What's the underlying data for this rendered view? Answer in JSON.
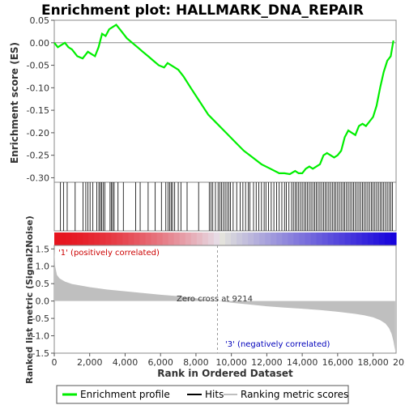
{
  "chart_data": {
    "type": "line",
    "title": "Enrichment plot: HALLMARK_DNA_REPAIR",
    "xlabel": "Rank in Ordered Dataset",
    "top_ylabel": "Enrichment score (ES)",
    "bottom_ylabel": "Ranked list metric (Signal2Noise)",
    "xlim": [
      0,
      19300
    ],
    "top_ylim": [
      -0.31,
      0.05
    ],
    "bottom_ylim": [
      -1.5,
      1.6
    ],
    "x_ticks": [
      0,
      2000,
      4000,
      6000,
      8000,
      10000,
      12000,
      14000,
      16000,
      18000,
      20000
    ],
    "x_tick_labels": [
      "0",
      "2,000",
      "4,000",
      "6,000",
      "8,000",
      "10,000",
      "12,000",
      "14,000",
      "16,000",
      "18,000",
      "20,000"
    ],
    "top_y_ticks": [
      0.05,
      0.0,
      -0.05,
      -0.1,
      -0.15,
      -0.2,
      -0.25,
      -0.3
    ],
    "top_y_tick_labels": [
      "0.05",
      "0.00",
      "-0.05",
      "-0.10",
      "-0.15",
      "-0.20",
      "-0.25",
      "-0.30"
    ],
    "bottom_y_ticks": [
      1.5,
      1.0,
      0.5,
      0.0,
      -0.5,
      -1.0,
      -1.5
    ],
    "bottom_y_tick_labels": [
      "1.5",
      "1.0",
      "0.5",
      "0.0",
      "-0.5",
      "-1.0",
      "-1.5"
    ],
    "series": [
      {
        "name": "Enrichment profile",
        "color": "#00ee00",
        "x": [
          0,
          200,
          400,
          600,
          800,
          1000,
          1300,
          1600,
          1900,
          2100,
          2300,
          2500,
          2700,
          2900,
          3100,
          3300,
          3500,
          3700,
          3900,
          4100,
          4400,
          4700,
          5000,
          5300,
          5600,
          5900,
          6200,
          6400,
          6600,
          6800,
          7000,
          7300,
          7700,
          8200,
          8700,
          9200,
          9700,
          10200,
          10700,
          11200,
          11700,
          12200,
          12700,
          13000,
          13300,
          13600,
          13800,
          14000,
          14200,
          14400,
          14600,
          14800,
          15000,
          15200,
          15400,
          15600,
          15800,
          16000,
          16200,
          16400,
          16600,
          16800,
          17000,
          17200,
          17400,
          17600,
          17800,
          18000,
          18200,
          18400,
          18600,
          18800,
          19000,
          19150
        ],
        "values": [
          0.0,
          -0.01,
          -0.005,
          0.0,
          -0.01,
          -0.015,
          -0.03,
          -0.035,
          -0.02,
          -0.025,
          -0.03,
          -0.01,
          0.02,
          0.015,
          0.03,
          0.035,
          0.04,
          0.03,
          0.02,
          0.01,
          0.0,
          -0.01,
          -0.02,
          -0.03,
          -0.04,
          -0.05,
          -0.055,
          -0.045,
          -0.05,
          -0.055,
          -0.06,
          -0.075,
          -0.1,
          -0.13,
          -0.16,
          -0.18,
          -0.2,
          -0.22,
          -0.24,
          -0.255,
          -0.27,
          -0.28,
          -0.29,
          -0.29,
          -0.292,
          -0.285,
          -0.29,
          -0.29,
          -0.28,
          -0.275,
          -0.28,
          -0.275,
          -0.27,
          -0.25,
          -0.245,
          -0.25,
          -0.255,
          -0.25,
          -0.24,
          -0.21,
          -0.195,
          -0.2,
          -0.205,
          -0.185,
          -0.18,
          -0.185,
          -0.175,
          -0.165,
          -0.14,
          -0.1,
          -0.065,
          -0.04,
          -0.03,
          0.005
        ]
      },
      {
        "name": "Hits",
        "color": "#000000",
        "x": [
          350,
          520,
          730,
          1180,
          1620,
          1780,
          1900,
          2020,
          2180,
          2400,
          2520,
          2600,
          2680,
          2760,
          2850,
          3150,
          3230,
          3300,
          3380,
          3600,
          3900,
          4600,
          4850,
          5300,
          5700,
          6050,
          6300,
          6420,
          6520,
          6600,
          6680,
          6800,
          7000,
          7150,
          7500,
          8150,
          8750,
          8850,
          8950,
          9100,
          9250,
          9350,
          9450,
          9550,
          9650,
          9750,
          9850,
          9950,
          10100,
          10300,
          10500,
          10650,
          10800,
          10950,
          11050,
          11250,
          11400,
          11550,
          11700,
          11850,
          11950,
          12100,
          12250,
          12400,
          12550,
          12700,
          12850,
          13000,
          13100,
          13250,
          13400,
          13500,
          13600,
          13700,
          13800,
          13900,
          14000,
          14100,
          14200,
          14300,
          14400,
          14500,
          14600,
          14700,
          14800,
          14900,
          15000,
          15100,
          15200,
          15300,
          15400,
          15500,
          15600,
          15700,
          15800,
          15900,
          16000,
          16100,
          16200,
          16300,
          16400,
          16500,
          16600,
          16700,
          16800,
          16900,
          17000,
          17100,
          17200,
          17300,
          17400,
          17500,
          17600,
          17700,
          17800,
          17900,
          18000,
          18100,
          18200,
          18300,
          18400,
          18500,
          18600,
          18700,
          18800,
          18900,
          19000,
          19100
        ]
      },
      {
        "name": "Ranking metric scores",
        "color": "#bfbfbf",
        "x": [
          0,
          50,
          150,
          300,
          600,
          1000,
          2000,
          3000,
          4000,
          5000,
          6000,
          7000,
          8000,
          9214,
          10000,
          11000,
          12000,
          13000,
          14000,
          15000,
          16000,
          17000,
          17500,
          18000,
          18400,
          18700,
          18900,
          19050,
          19150,
          19200,
          19250
        ],
        "values": [
          1.5,
          1.0,
          0.75,
          0.65,
          0.56,
          0.49,
          0.4,
          0.33,
          0.28,
          0.23,
          0.18,
          0.14,
          0.08,
          0.0,
          -0.05,
          -0.1,
          -0.15,
          -0.19,
          -0.22,
          -0.26,
          -0.31,
          -0.37,
          -0.41,
          -0.47,
          -0.55,
          -0.65,
          -0.78,
          -0.95,
          -1.15,
          -1.3,
          -1.43
        ]
      }
    ],
    "zero_cross_x": 9214,
    "zero_cross_label": "Zero cross at 9214",
    "positive_label": "'1' (positively correlated)",
    "negative_label": "'3' (negatively correlated)",
    "positive_color": "#ff0000",
    "negative_color": "#0000ff"
  }
}
